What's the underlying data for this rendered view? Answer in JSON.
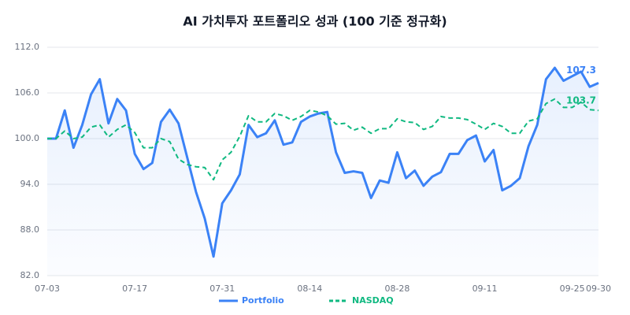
{
  "chart_data": {
    "type": "line",
    "title": "AI 가치투자 포트폴리오 성과 (100 기준 정규화)",
    "categories": [
      "07-03",
      null,
      null,
      null,
      null,
      null,
      null,
      null,
      null,
      null,
      "07-17",
      null,
      null,
      null,
      null,
      null,
      null,
      null,
      null,
      null,
      "07-31",
      null,
      null,
      null,
      null,
      null,
      null,
      null,
      null,
      null,
      "08-14",
      null,
      null,
      null,
      null,
      null,
      null,
      null,
      null,
      null,
      "08-28",
      null,
      null,
      null,
      null,
      null,
      null,
      null,
      null,
      null,
      "09-11",
      null,
      null,
      null,
      null,
      null,
      null,
      null,
      null,
      null,
      "09-25",
      null,
      null,
      "09-30"
    ],
    "series": [
      {
        "name": "Portfolio",
        "color": "#3b82f6",
        "dashed": false,
        "area": true,
        "values": [
          100.0,
          100.0,
          103.7,
          98.8,
          101.8,
          105.8,
          107.8,
          102.0,
          105.2,
          103.7,
          98.0,
          96.0,
          96.8,
          102.2,
          103.8,
          102.0,
          97.5,
          93.0,
          89.5,
          84.5,
          91.5,
          93.2,
          95.3,
          101.8,
          100.2,
          100.7,
          102.4,
          99.2,
          99.5,
          102.2,
          102.9,
          103.3,
          103.5,
          98.2,
          95.5,
          95.7,
          95.5,
          92.2,
          94.5,
          94.2,
          98.2,
          94.8,
          95.8,
          93.8,
          95.0,
          95.6,
          98.0,
          98.0,
          99.8,
          100.4,
          97.0,
          98.5,
          93.2,
          93.8,
          94.8,
          99.0,
          101.8,
          107.8,
          109.3,
          107.6,
          108.2,
          108.8,
          106.8,
          107.3
        ]
      },
      {
        "name": "NASDAQ",
        "color": "#10b981",
        "dashed": true,
        "area": false,
        "values": [
          100.0,
          100.0,
          101.0,
          100.0,
          100.2,
          101.5,
          101.8,
          100.2,
          101.2,
          101.8,
          100.8,
          98.8,
          98.8,
          100.0,
          99.6,
          97.3,
          96.6,
          96.3,
          96.2,
          94.6,
          97.2,
          98.2,
          100.3,
          103.0,
          102.2,
          102.2,
          103.3,
          103.0,
          102.4,
          102.9,
          103.7,
          103.5,
          103.0,
          101.9,
          102.0,
          101.1,
          101.5,
          100.7,
          101.3,
          101.3,
          102.6,
          102.2,
          102.1,
          101.2,
          101.6,
          102.9,
          102.7,
          102.7,
          102.5,
          101.9,
          101.2,
          102.0,
          101.6,
          100.7,
          100.7,
          102.3,
          102.6,
          104.6,
          105.2,
          104.1,
          104.1,
          104.8,
          103.8,
          103.7
        ]
      }
    ],
    "ylim": [
      82,
      112
    ],
    "yticks": [
      {
        "value": 82,
        "label": "82.0"
      },
      {
        "value": 88,
        "label": "88.0"
      },
      {
        "value": 94,
        "label": "94.0"
      },
      {
        "value": 100,
        "label": "100.0"
      },
      {
        "value": 106,
        "label": "106.0"
      },
      {
        "value": 112,
        "label": "112.0"
      }
    ],
    "grid": true,
    "legend": "bottom"
  }
}
